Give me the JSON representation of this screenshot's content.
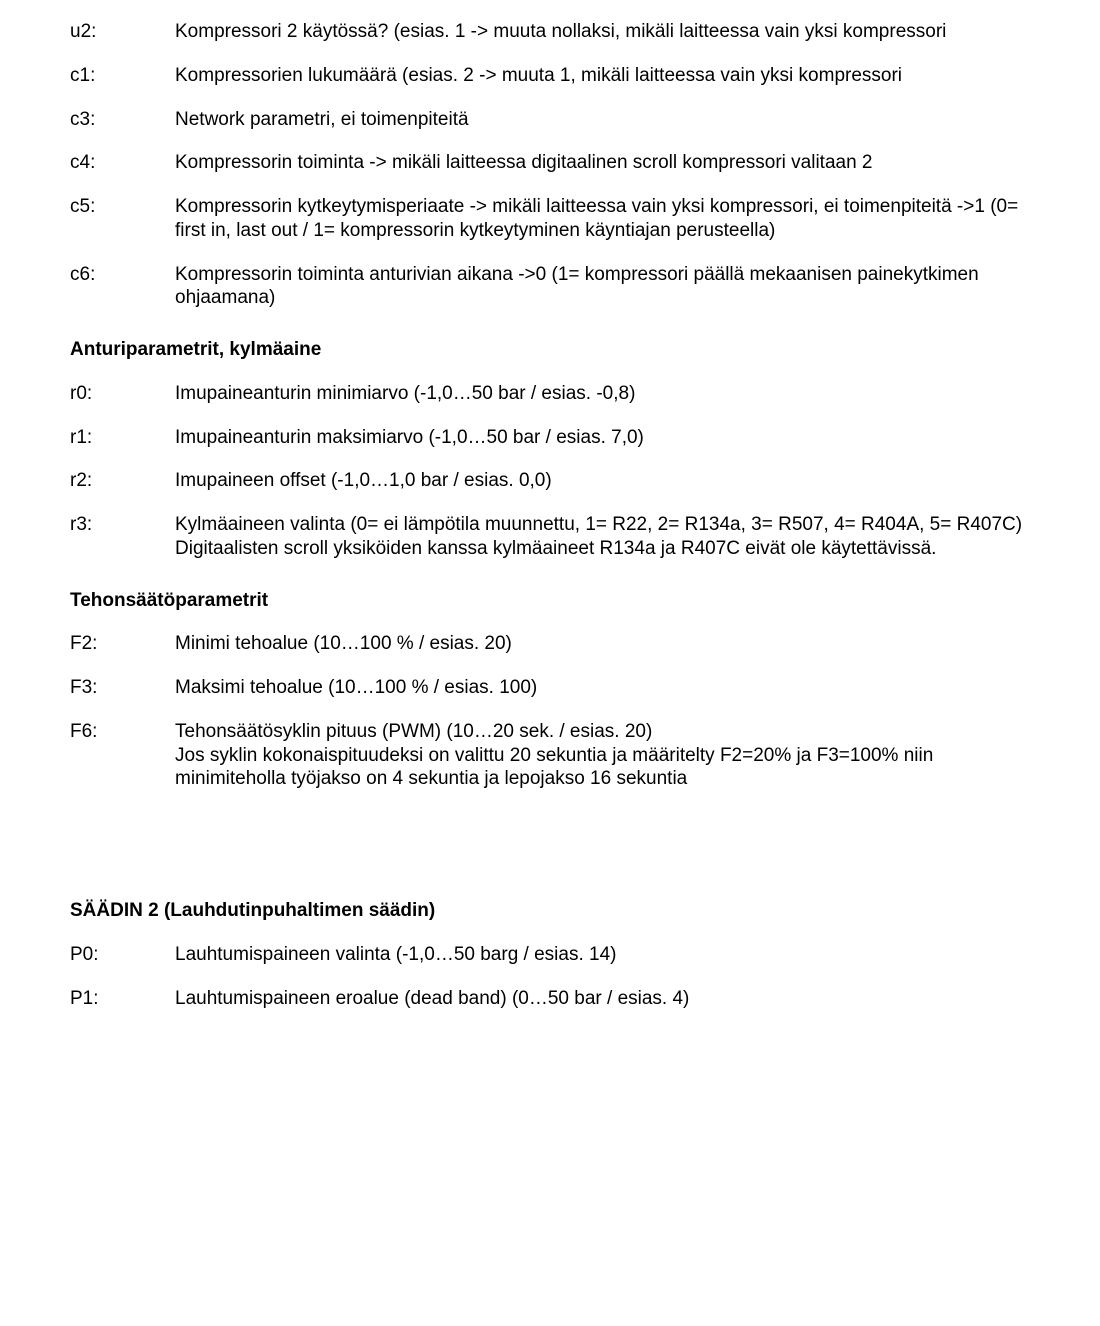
{
  "entries_before_anturi": [
    {
      "key": "u2:",
      "lines": [
        "Kompressori 2 käytössä? (esias. 1 -> muuta nollaksi, mikäli laitteessa vain yksi kompressori"
      ]
    },
    {
      "key": "c1:",
      "lines": [
        "Kompressorien lukumäärä (esias. 2 -> muuta 1, mikäli laitteessa vain yksi kompressori"
      ]
    },
    {
      "key": "c3:",
      "lines": [
        "Network parametri, ei toimenpiteitä"
      ]
    },
    {
      "key": "c4:",
      "lines": [
        "Kompressorin toiminta -> mikäli laitteessa digitaalinen scroll kompressori valitaan 2"
      ]
    },
    {
      "key": "c5:",
      "lines": [
        "Kompressorin kytkeytymisperiaate -> mikäli laitteessa vain yksi kompressori, ei toimenpiteitä ->1 (0= first in, last out / 1= kompressorin kytkeytyminen käyntiajan perusteella)"
      ]
    },
    {
      "key": "c6:",
      "lines": [
        "Kompressorin toiminta anturivian aikana ->0 (1= kompressori päällä mekaanisen painekytkimen ohjaamana)"
      ]
    }
  ],
  "section_anturi": "Anturiparametrit, kylmäaine",
  "entries_anturi": [
    {
      "key": "r0:",
      "lines": [
        "Imupaineanturin minimiarvo (-1,0…50 bar / esias. -0,8)"
      ]
    },
    {
      "key": "r1:",
      "lines": [
        "Imupaineanturin maksimiarvo (-1,0…50 bar / esias. 7,0)"
      ]
    },
    {
      "key": "r2:",
      "lines": [
        "Imupaineen offset (-1,0…1,0 bar / esias. 0,0)"
      ]
    },
    {
      "key": "r3:",
      "lines": [
        "Kylmäaineen valinta (0= ei lämpötila muunnettu, 1= R22, 2= R134a, 3= R507, 4= R404A, 5= R407C)",
        "Digitaalisten scroll yksiköiden kanssa kylmäaineet R134a ja R407C eivät ole käytettävissä."
      ]
    }
  ],
  "section_tehon": "Tehonsäätöparametrit",
  "entries_tehon": [
    {
      "key": "F2:",
      "lines": [
        "Minimi tehoalue (10…100 % / esias. 20)"
      ]
    },
    {
      "key": "F3:",
      "lines": [
        "Maksimi tehoalue (10…100 % / esias. 100)"
      ]
    },
    {
      "key": "F6:",
      "lines": [
        "Tehonsäätösyklin pituus (PWM) (10…20 sek. / esias. 20)",
        "Jos syklin kokonaispituudeksi on valittu 20 sekuntia ja määritelty F2=20% ja F3=100% niin minimiteholla työjakso on 4 sekuntia ja lepojakso 16 sekuntia"
      ]
    }
  ],
  "section_saadin": "SÄÄDIN 2 (Lauhdutinpuhaltimen säädin)",
  "entries_saadin": [
    {
      "key": "P0:",
      "lines": [
        "Lauhtumispaineen valinta (-1,0…50 barg / esias. 14)"
      ]
    },
    {
      "key": "P1:",
      "lines": [
        "Lauhtumispaineen eroalue (dead band) (0…50 bar / esias. 4)"
      ]
    }
  ]
}
